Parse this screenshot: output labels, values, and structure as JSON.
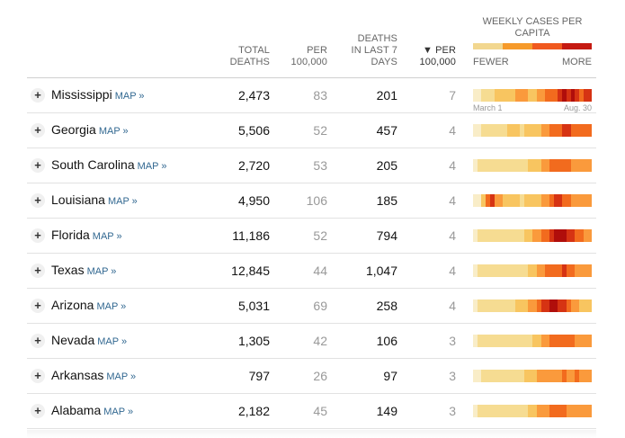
{
  "header": {
    "total_deaths": "TOTAL DEATHS",
    "per_100k": "PER 100,000",
    "deaths_7days": "DEATHS IN LAST 7 DAYS",
    "sort_per_100k": "▼ PER 100,000",
    "legend_title": "WEEKLY CASES PER CAPITA",
    "legend_fewer": "FEWER",
    "legend_more": "MORE"
  },
  "colors": {
    "scale": [
      "#f9edc8",
      "#f6dc92",
      "#f8c560",
      "#fa9a3c",
      "#f26b1e",
      "#d63313",
      "#b00e0b"
    ],
    "legend": [
      "#f2d78f",
      "#f69a2a",
      "#f0591e",
      "#c51a12"
    ],
    "map_link": "#326891"
  },
  "date_labels": {
    "start": "March 1",
    "end": "Aug. 30"
  },
  "rows": [
    {
      "state": "Mississippi",
      "map": "MAP »",
      "total": "2,473",
      "per": "83",
      "last7": "201",
      "sort": "7",
      "heat": [
        0,
        0,
        1,
        1,
        1,
        2,
        2,
        2,
        2,
        2,
        3,
        3,
        3,
        2,
        2,
        3,
        3,
        4,
        4,
        4,
        5,
        6,
        5,
        6,
        5,
        4,
        5,
        5
      ]
    },
    {
      "state": "Georgia",
      "map": "MAP »",
      "total": "5,506",
      "per": "52",
      "last7": "457",
      "sort": "4",
      "heat": [
        0,
        0,
        1,
        1,
        1,
        1,
        1,
        1,
        2,
        2,
        2,
        1,
        2,
        2,
        2,
        2,
        3,
        3,
        4,
        4,
        4,
        5,
        5,
        4,
        4,
        4,
        4,
        4
      ]
    },
    {
      "state": "South Carolina",
      "map": "MAP »",
      "total": "2,720",
      "per": "53",
      "last7": "205",
      "sort": "4",
      "heat": [
        0,
        1,
        1,
        1,
        1,
        1,
        1,
        1,
        1,
        1,
        1,
        1,
        1,
        2,
        2,
        2,
        3,
        3,
        4,
        4,
        4,
        4,
        4,
        3,
        3,
        3,
        3,
        3
      ]
    },
    {
      "state": "Louisiana",
      "map": "MAP »",
      "total": "4,950",
      "per": "106",
      "last7": "185",
      "sort": "4",
      "heat": [
        0,
        0,
        2,
        4,
        5,
        3,
        3,
        2,
        2,
        2,
        2,
        1,
        2,
        2,
        2,
        2,
        3,
        3,
        4,
        5,
        5,
        4,
        4,
        3,
        3,
        3,
        3,
        3
      ]
    },
    {
      "state": "Florida",
      "map": "MAP »",
      "total": "11,186",
      "per": "52",
      "last7": "794",
      "sort": "4",
      "heat": [
        0,
        1,
        1,
        1,
        1,
        1,
        1,
        1,
        1,
        1,
        1,
        1,
        2,
        2,
        3,
        3,
        4,
        4,
        5,
        6,
        6,
        6,
        5,
        5,
        4,
        4,
        3,
        3
      ]
    },
    {
      "state": "Texas",
      "map": "MAP »",
      "total": "12,845",
      "per": "44",
      "last7": "1,047",
      "sort": "4",
      "heat": [
        0,
        1,
        1,
        1,
        1,
        1,
        1,
        1,
        1,
        1,
        1,
        1,
        1,
        2,
        2,
        3,
        3,
        4,
        4,
        4,
        4,
        5,
        4,
        4,
        3,
        3,
        3,
        3
      ]
    },
    {
      "state": "Arizona",
      "map": "MAP »",
      "total": "5,031",
      "per": "69",
      "last7": "258",
      "sort": "4",
      "heat": [
        0,
        1,
        1,
        1,
        1,
        1,
        1,
        1,
        1,
        1,
        2,
        2,
        2,
        3,
        3,
        4,
        5,
        5,
        6,
        6,
        5,
        5,
        4,
        3,
        3,
        2,
        2,
        2
      ]
    },
    {
      "state": "Nevada",
      "map": "MAP »",
      "total": "1,305",
      "per": "42",
      "last7": "106",
      "sort": "3",
      "heat": [
        0,
        1,
        1,
        1,
        1,
        1,
        1,
        1,
        1,
        1,
        1,
        1,
        1,
        1,
        2,
        2,
        3,
        3,
        4,
        4,
        4,
        4,
        4,
        4,
        3,
        3,
        3,
        3
      ]
    },
    {
      "state": "Arkansas",
      "map": "MAP »",
      "total": "797",
      "per": "26",
      "last7": "97",
      "sort": "3",
      "heat": [
        0,
        0,
        1,
        1,
        1,
        1,
        1,
        1,
        1,
        1,
        1,
        1,
        2,
        2,
        2,
        3,
        3,
        3,
        3,
        3,
        3,
        4,
        3,
        3,
        4,
        3,
        3,
        3
      ]
    },
    {
      "state": "Alabama",
      "map": "MAP »",
      "total": "2,182",
      "per": "45",
      "last7": "149",
      "sort": "3",
      "heat": [
        0,
        1,
        1,
        1,
        1,
        1,
        1,
        1,
        1,
        1,
        1,
        1,
        1,
        2,
        2,
        3,
        3,
        3,
        4,
        4,
        4,
        4,
        3,
        3,
        3,
        3,
        3,
        3
      ]
    }
  ]
}
